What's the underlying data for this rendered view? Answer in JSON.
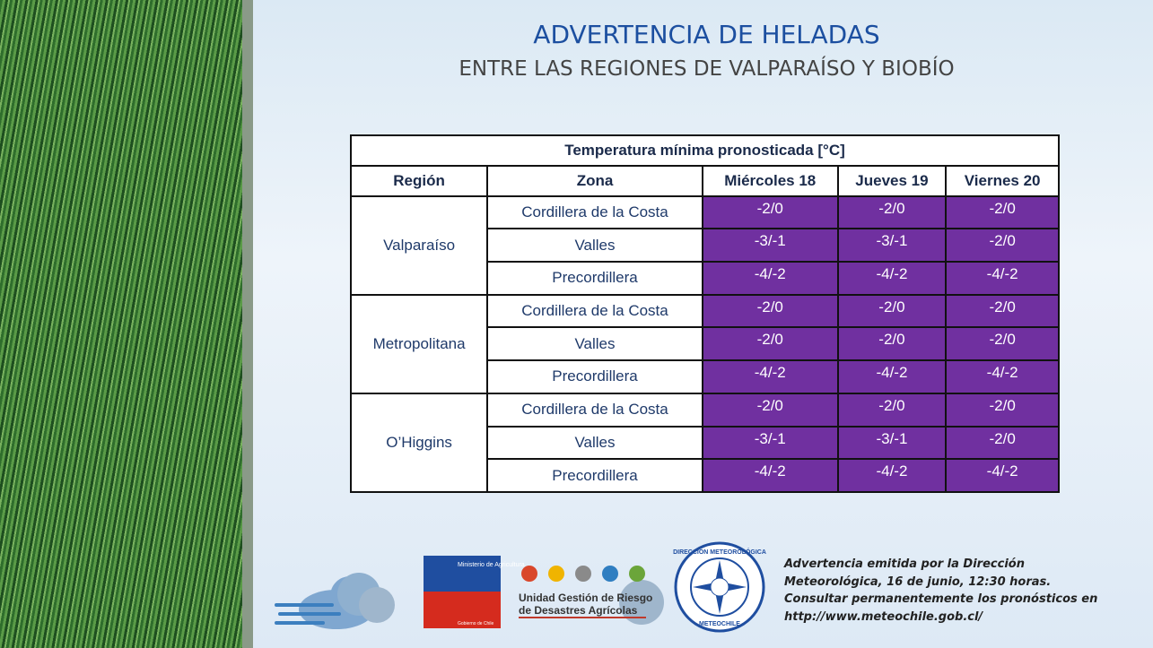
{
  "header": {
    "title": "ADVERTENCIA DE HELADAS",
    "subtitle": "ENTRE LAS REGIONES DE VALPARAÍSO Y BIOBÍO"
  },
  "table": {
    "caption": "Temperatura mínima pronosticada [°C]",
    "headers": [
      "Región",
      "Zona",
      "Miércoles 18",
      "Jueves 19",
      "Viernes 20"
    ],
    "regions": [
      {
        "name": "Valparaíso",
        "zones": [
          {
            "name": "Cordillera de la Costa",
            "values": [
              "-2/0",
              "-2/0",
              "-2/0"
            ]
          },
          {
            "name": "Valles",
            "values": [
              "-3/-1",
              "-3/-1",
              "-2/0"
            ]
          },
          {
            "name": "Precordillera",
            "values": [
              "-4/-2",
              "-4/-2",
              "-4/-2"
            ]
          }
        ]
      },
      {
        "name": "Metropolitana",
        "zones": [
          {
            "name": "Cordillera de la Costa",
            "values": [
              "-2/0",
              "-2/0",
              "-2/0"
            ]
          },
          {
            "name": "Valles",
            "values": [
              "-2/0",
              "-2/0",
              "-2/0"
            ]
          },
          {
            "name": "Precordillera",
            "values": [
              "-4/-2",
              "-4/-2",
              "-4/-2"
            ]
          }
        ]
      },
      {
        "name": "O’Higgins",
        "zones": [
          {
            "name": "Cordillera de la Costa",
            "values": [
              "-2/0",
              "-2/0",
              "-2/0"
            ]
          },
          {
            "name": "Valles",
            "values": [
              "-3/-1",
              "-3/-1",
              "-2/0"
            ]
          },
          {
            "name": "Precordillera",
            "values": [
              "-4/-2",
              "-4/-2",
              "-4/-2"
            ]
          }
        ]
      }
    ]
  },
  "logos": {
    "ministry": "Ministerio de Agricultura",
    "government": "Gobierno de Chile",
    "ugrda": [
      "Unidad Gestión de Riesgo",
      "de Desastres Agrícolas"
    ],
    "meteo_top": "DIRECCIÓN METEOROLÓGICA",
    "meteo_bottom": "METEOCHILE"
  },
  "footer": {
    "lines": [
      "Advertencia emitida por la Dirección",
      "Meteorológica, 16 de junio, 12:30 horas.",
      "Consultar permanentemente los pronósticos en",
      "http://www.meteochile.gob.cl/"
    ]
  }
}
